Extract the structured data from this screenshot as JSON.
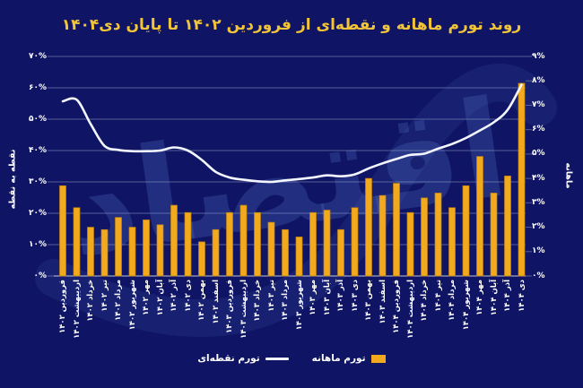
{
  "title": "روند تورم ماهانه و نقطه‌ای از فروردین ۱۴۰۲ تا پایان دی۱۴۰۴",
  "watermark": "اقتصاد",
  "colors": {
    "background": "#0f1564",
    "bar": "#f2a91e",
    "line": "#f3f6ff",
    "title": "#f2c437",
    "axis_text": "#ffffff",
    "gridline": "rgba(180,193,224,0.42)",
    "baseline": "rgba(225,231,248,0.85)",
    "watermark": "rgba(90,120,205,0.26)"
  },
  "axes": {
    "left_title": "نقطه به نقطه",
    "right_title": "ماهانه",
    "left_ticks": [
      "۷۰%",
      "۶۰%",
      "۵۰%",
      "۴۰%",
      "۳۰%",
      "۲۰%",
      "۱۰%",
      "۰%"
    ],
    "right_ticks": [
      "۹%",
      "۸%",
      "۷%",
      "۶%",
      "۵%",
      "۴%",
      "۳%",
      "۲%",
      "۱%",
      "۰%"
    ]
  },
  "legend": {
    "line_label": "تورم نقطه‌ای",
    "bar_label": "تورم ماهانه"
  },
  "chart_data": {
    "type": "bar",
    "subtype": "bar+line dual-axis",
    "title": "روند تورم ماهانه و نقطه‌ای از فروردین ۱۴۰۲ تا پایان دی۱۴۰۴",
    "categories": [
      "فروردین ۱۴۰۲",
      "اردیبهشت ۱۴۰۲",
      "خرداد ۱۴۰۲",
      "تیر ۱۴۰۲",
      "مرداد ۱۴۰۲",
      "شهریور ۱۴۰۲",
      "مهر ۱۴۰۲",
      "آبان ۱۴۰۲",
      "آذر ۱۴۰۲",
      "دی ۱۴۰۲",
      "بهمن ۱۴۰۲",
      "اسفند ۱۴۰۲",
      "فروردین ۱۴۰۳",
      "اردیبهشت ۱۴۰۳",
      "خرداد ۱۴۰۳",
      "تیر ۱۴۰۳",
      "مرداد ۱۴۰۳",
      "شهریور ۱۴۰۳",
      "مهر ۱۴۰۳",
      "آبان ۱۴۰۳",
      "آذر ۱۴۰۳",
      "دی ۱۴۰۳",
      "بهمن ۱۴۰۳",
      "اسفند ۱۴۰۳",
      "فروردین ۱۴۰۴",
      "اردیبهشت ۱۴۰۴",
      "خرداد ۱۴۰۴",
      "تیر ۱۴۰۴",
      "مرداد ۱۴۰۴",
      "شهریور ۱۴۰۴",
      "مهر ۱۴۰۴",
      "آبان ۱۴۰۴",
      "آذر ۱۴۰۴",
      "دی ۱۴۰۴"
    ],
    "series": [
      {
        "name": "تورم ماهانه",
        "type": "bar",
        "axis": "right",
        "unit": "%",
        "values": [
          3.7,
          2.8,
          2.0,
          1.9,
          2.4,
          2.0,
          2.3,
          2.1,
          2.9,
          2.6,
          1.4,
          1.9,
          2.6,
          2.9,
          2.6,
          2.2,
          1.9,
          1.6,
          2.6,
          2.7,
          1.9,
          2.8,
          4.0,
          3.3,
          3.8,
          2.6,
          3.2,
          3.4,
          2.8,
          3.7,
          4.9,
          3.4,
          4.1,
          7.9
        ]
      },
      {
        "name": "تورم نقطه‌ای",
        "type": "line",
        "axis": "left",
        "unit": "%",
        "values": [
          55.7,
          56.2,
          48.5,
          41.5,
          40.2,
          39.8,
          39.8,
          40.0,
          41.0,
          40.0,
          37.0,
          33.2,
          31.4,
          30.7,
          30.2,
          30.0,
          30.5,
          30.9,
          31.4,
          32.1,
          31.8,
          32.4,
          34.3,
          35.9,
          37.3,
          38.6,
          39.0,
          40.6,
          42.1,
          44.0,
          46.4,
          49.0,
          53.0,
          61.0
        ]
      }
    ],
    "left_axis": {
      "label": "نقطه به نقطه",
      "range": [
        0,
        70
      ],
      "tick_step": 10,
      "unit": "%"
    },
    "right_axis": {
      "label": "ماهانه",
      "range": [
        0,
        9
      ],
      "tick_step": 1,
      "unit": "%"
    },
    "grid": true,
    "legend_position": "bottom"
  }
}
